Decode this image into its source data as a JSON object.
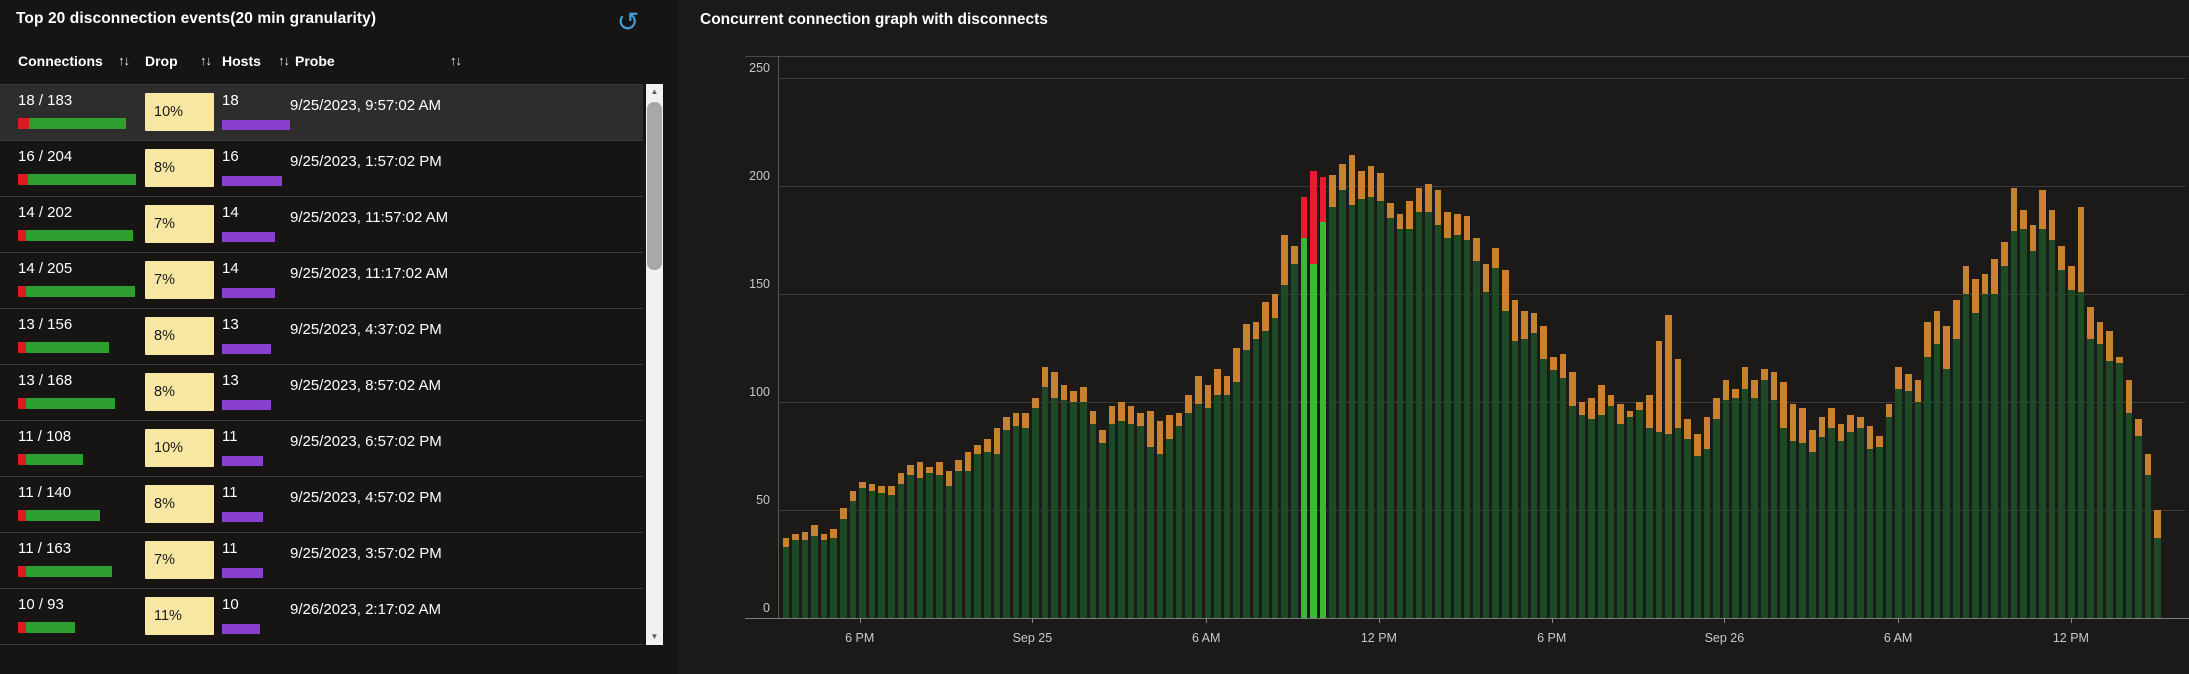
{
  "left_panel": {
    "title": "Top 20 disconnection events(20 min granularity)",
    "refresh_icon": "undo-arrow",
    "sort_glyph": "↑↓",
    "columns": [
      {
        "label": "Connections",
        "sortable": true
      },
      {
        "label": "Drop",
        "sortable": true
      },
      {
        "label": "Hosts",
        "sortable": true
      },
      {
        "label": "Probe",
        "sortable": true
      }
    ],
    "rows": [
      {
        "connections": "18 / 183",
        "drop": "10%",
        "hosts": "18",
        "probe": "9/25/2023, 9:57:02 AM",
        "total": 183,
        "dropped": 18,
        "hosts_n": 18,
        "selected": true
      },
      {
        "connections": "16 / 204",
        "drop": "8%",
        "hosts": "16",
        "probe": "9/25/2023, 1:57:02 PM",
        "total": 204,
        "dropped": 16,
        "hosts_n": 16,
        "selected": false
      },
      {
        "connections": "14 / 202",
        "drop": "7%",
        "hosts": "14",
        "probe": "9/25/2023, 11:57:02 AM",
        "total": 202,
        "dropped": 14,
        "hosts_n": 14,
        "selected": false
      },
      {
        "connections": "14 / 205",
        "drop": "7%",
        "hosts": "14",
        "probe": "9/25/2023, 11:17:02 AM",
        "total": 205,
        "dropped": 14,
        "hosts_n": 14,
        "selected": false
      },
      {
        "connections": "13 / 156",
        "drop": "8%",
        "hosts": "13",
        "probe": "9/25/2023, 4:37:02 PM",
        "total": 156,
        "dropped": 13,
        "hosts_n": 13,
        "selected": false
      },
      {
        "connections": "13 / 168",
        "drop": "8%",
        "hosts": "13",
        "probe": "9/25/2023, 8:57:02 AM",
        "total": 168,
        "dropped": 13,
        "hosts_n": 13,
        "selected": false
      },
      {
        "connections": "11 / 108",
        "drop": "10%",
        "hosts": "11",
        "probe": "9/25/2023, 6:57:02 PM",
        "total": 108,
        "dropped": 11,
        "hosts_n": 11,
        "selected": false
      },
      {
        "connections": "11 / 140",
        "drop": "8%",
        "hosts": "11",
        "probe": "9/25/2023, 4:57:02 PM",
        "total": 140,
        "dropped": 11,
        "hosts_n": 11,
        "selected": false
      },
      {
        "connections": "11 / 163",
        "drop": "7%",
        "hosts": "11",
        "probe": "9/25/2023, 3:57:02 PM",
        "total": 163,
        "dropped": 11,
        "hosts_n": 11,
        "selected": false
      },
      {
        "connections": "10 / 93",
        "drop": "11%",
        "hosts": "10",
        "probe": "9/26/2023, 2:17:02 AM",
        "total": 93,
        "dropped": 10,
        "hosts_n": 10,
        "selected": false
      }
    ],
    "colors": {
      "drop_badge": "#f7e7a2",
      "hosts_bar": "#8a40cf",
      "connections_bar": "#2e9e30",
      "connections_drop": "#e0191f",
      "row_highlight": "#2d2d2d",
      "refresh_icon": "#3f9bdc"
    }
  },
  "chart_data": {
    "type": "bar",
    "title": "Concurrent connection graph with disconnects",
    "xlabel": "",
    "ylabel": "",
    "ylim": [
      0,
      250
    ],
    "yticks": [
      0,
      50,
      100,
      150,
      200,
      250
    ],
    "grid": true,
    "legend": "none",
    "granularity": "20 min per bar",
    "x_tick_labels": [
      "6 PM",
      "Sep 25",
      "6 AM",
      "12 PM",
      "6 PM",
      "Sep 26",
      "6 AM",
      "12 PM"
    ],
    "x_tick_bar_index": [
      8.2,
      26.2,
      44.3,
      62.3,
      80.3,
      98.3,
      116.4,
      134.4
    ],
    "series_note": "bar total = concurrent connections; orange tip = disconnects; highlighted bars (bright green with red tip) = selected disconnection event around 9/25 9:57 AM",
    "totals": [
      37,
      39,
      40,
      43,
      39,
      41,
      51,
      59,
      63,
      62,
      61,
      61,
      67,
      71,
      72,
      70,
      72,
      68,
      73,
      77,
      80,
      83,
      88,
      93,
      95,
      95,
      102,
      116,
      114,
      108,
      105,
      107,
      96,
      87,
      98,
      100,
      98,
      95,
      96,
      91,
      94,
      95,
      103,
      112,
      108,
      115,
      112,
      125,
      136,
      137,
      146,
      150,
      177,
      172,
      195,
      207,
      204,
      205,
      210,
      214,
      207,
      209,
      206,
      192,
      187,
      193,
      199,
      201,
      198,
      188,
      187,
      186,
      176,
      164,
      171,
      161,
      147,
      142,
      141,
      135,
      121,
      122,
      114,
      100,
      102,
      108,
      103,
      99,
      96,
      100,
      103,
      128,
      140,
      120,
      92,
      85,
      93,
      102,
      110,
      106,
      116,
      110,
      115,
      114,
      109,
      99,
      97,
      87,
      93,
      97,
      90,
      94,
      93,
      89,
      84,
      99,
      116,
      113,
      110,
      137,
      142,
      135,
      147,
      163,
      157,
      159,
      166,
      174,
      199,
      189,
      182,
      198,
      189,
      172,
      163,
      190,
      144,
      137,
      133,
      121,
      110,
      92,
      76,
      50
    ],
    "greens": [
      33,
      36,
      36,
      38,
      36,
      37,
      46,
      54,
      60,
      59,
      58,
      57,
      62,
      66,
      65,
      67,
      66,
      61,
      68,
      68,
      76,
      77,
      76,
      87,
      89,
      88,
      97,
      107,
      102,
      101,
      100,
      100,
      90,
      81,
      90,
      91,
      90,
      89,
      79,
      76,
      83,
      89,
      95,
      99,
      97,
      103,
      103,
      109,
      124,
      129,
      133,
      139,
      154,
      164,
      176,
      164,
      183,
      190,
      198,
      191,
      194,
      195,
      193,
      185,
      180,
      180,
      188,
      188,
      182,
      176,
      177,
      175,
      165,
      151,
      162,
      142,
      128,
      129,
      132,
      120,
      115,
      111,
      98,
      94,
      92,
      94,
      98,
      90,
      93,
      96,
      88,
      86,
      85,
      88,
      83,
      75,
      78,
      92,
      101,
      102,
      106,
      102,
      110,
      101,
      88,
      82,
      81,
      77,
      84,
      88,
      82,
      86,
      88,
      78,
      79,
      93,
      106,
      105,
      100,
      121,
      127,
      115,
      129,
      150,
      141,
      150,
      150,
      163,
      179,
      180,
      170,
      180,
      175,
      161,
      152,
      151,
      129,
      127,
      119,
      118,
      95,
      84,
      66,
      37
    ],
    "highlighted_bar_indexes": [
      54,
      55,
      56
    ],
    "colors": {
      "bar": "#1d4a24",
      "tip": "#c8812f",
      "highlight_bar": "#3ab83a",
      "highlight_tip": "#ea1b2e",
      "gridline": "#3c3c3c",
      "axis_label": "#c9c9c9"
    }
  }
}
